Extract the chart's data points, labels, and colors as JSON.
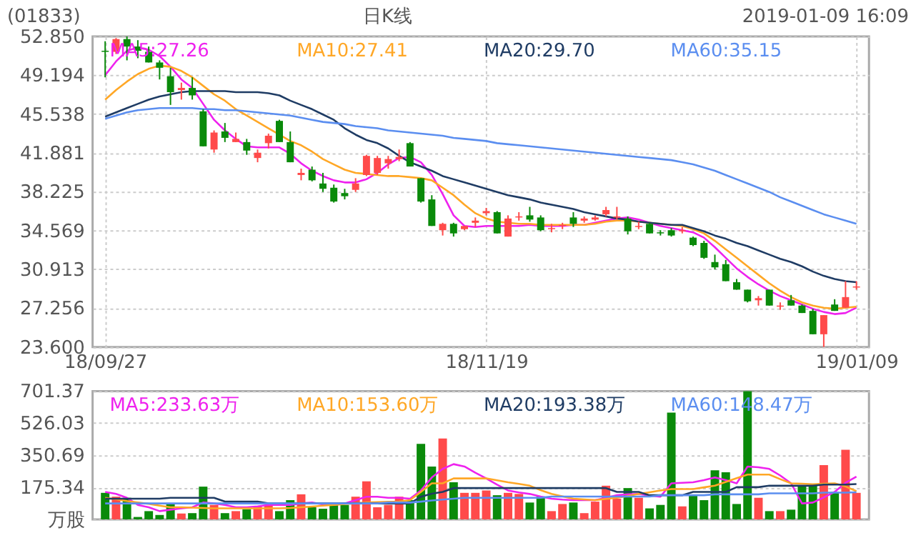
{
  "chart_data": [
    {
      "type": "candlestick",
      "title": "(01833)",
      "annotations": [
        "日K线",
        "2019-01-09 16:09"
      ],
      "categories": [
        "18/09/27",
        null,
        null,
        null,
        null,
        null,
        null,
        null,
        null,
        null,
        null,
        null,
        null,
        null,
        null,
        null,
        null,
        null,
        null,
        null,
        null,
        null,
        null,
        null,
        null,
        null,
        null,
        null,
        null,
        null,
        null,
        null,
        null,
        null,
        null,
        "18/11/19",
        null,
        null,
        null,
        null,
        null,
        null,
        null,
        null,
        null,
        null,
        null,
        null,
        null,
        null,
        null,
        null,
        null,
        null,
        null,
        null,
        null,
        null,
        null,
        null,
        null,
        null,
        null,
        null,
        null,
        null,
        null,
        null,
        null,
        "19/01/09"
      ],
      "ohlc": [
        [
          51.5,
          52.4,
          49.0,
          51.4
        ],
        [
          51.4,
          52.7,
          51.2,
          52.6
        ],
        [
          52.6,
          52.85,
          50.6,
          51.9
        ],
        [
          51.9,
          52.5,
          50.8,
          51.5
        ],
        [
          51.4,
          51.9,
          50.4,
          50.4
        ],
        [
          50.4,
          50.6,
          48.8,
          49.9
        ],
        [
          49.1,
          49.9,
          46.4,
          47.6
        ],
        [
          47.8,
          48.5,
          46.9,
          48.0
        ],
        [
          48.0,
          49.0,
          46.9,
          47.3
        ],
        [
          45.8,
          46.0,
          42.5,
          42.5
        ],
        [
          42.2,
          44.0,
          41.9,
          43.8
        ],
        [
          43.9,
          44.7,
          42.9,
          43.3
        ],
        [
          42.9,
          43.8,
          42.9,
          43.2
        ],
        [
          42.9,
          43.2,
          41.7,
          42.1
        ],
        [
          41.4,
          42.2,
          41.0,
          41.9
        ],
        [
          42.8,
          43.7,
          42.3,
          43.5
        ],
        [
          44.9,
          45.0,
          42.9,
          42.9
        ],
        [
          42.9,
          43.9,
          41.0,
          41.0
        ],
        [
          39.8,
          40.4,
          39.3,
          40.0
        ],
        [
          40.3,
          40.6,
          39.2,
          39.3
        ],
        [
          39.0,
          40.0,
          38.2,
          38.5
        ],
        [
          38.6,
          38.9,
          37.2,
          37.3
        ],
        [
          38.1,
          38.5,
          37.5,
          37.8
        ],
        [
          38.4,
          39.5,
          38.2,
          39.0
        ],
        [
          39.8,
          41.7,
          39.7,
          41.6
        ],
        [
          40.0,
          41.6,
          39.8,
          41.4
        ],
        [
          40.9,
          41.6,
          40.4,
          41.3
        ],
        [
          41.3,
          42.2,
          41.1,
          41.5
        ],
        [
          42.8,
          42.9,
          40.6,
          40.6
        ],
        [
          39.5,
          39.5,
          37.2,
          37.3
        ],
        [
          37.5,
          37.9,
          35.0,
          35.0
        ],
        [
          34.6,
          35.3,
          34.1,
          35.2
        ],
        [
          35.2,
          35.3,
          34.0,
          34.3
        ],
        [
          34.7,
          35.0,
          34.6,
          35.0
        ],
        [
          35.3,
          35.8,
          34.9,
          35.5
        ],
        [
          36.2,
          36.7,
          36.0,
          36.4
        ],
        [
          36.3,
          36.4,
          34.3,
          34.3
        ],
        [
          34.0,
          36.0,
          34.0,
          35.7
        ],
        [
          35.8,
          36.3,
          35.5,
          35.9
        ],
        [
          36.0,
          36.8,
          35.4,
          35.6
        ],
        [
          35.8,
          36.0,
          34.5,
          34.6
        ],
        [
          34.7,
          35.2,
          34.4,
          34.8
        ],
        [
          35.0,
          35.3,
          34.7,
          35.1
        ],
        [
          35.8,
          36.3,
          34.9,
          35.2
        ],
        [
          35.5,
          35.9,
          35.3,
          35.7
        ],
        [
          35.6,
          36.0,
          35.5,
          35.8
        ],
        [
          36.1,
          36.8,
          35.9,
          36.5
        ],
        [
          35.8,
          36.8,
          35.6,
          35.9
        ],
        [
          35.7,
          35.9,
          34.2,
          34.5
        ],
        [
          34.9,
          35.4,
          34.7,
          35.0
        ],
        [
          35.2,
          35.3,
          34.3,
          34.3
        ],
        [
          34.4,
          34.6,
          34.1,
          34.3
        ],
        [
          34.6,
          34.8,
          34.0,
          34.1
        ],
        [
          34.5,
          34.9,
          34.3,
          34.6
        ],
        [
          33.9,
          34.0,
          33.1,
          33.2
        ],
        [
          33.4,
          33.6,
          31.9,
          32.0
        ],
        [
          31.6,
          32.3,
          30.9,
          31.1
        ],
        [
          31.4,
          31.8,
          29.8,
          29.8
        ],
        [
          29.7,
          30.0,
          29.0,
          29.0
        ],
        [
          29.0,
          29.0,
          27.8,
          27.9
        ],
        [
          28.0,
          28.4,
          27.5,
          28.2
        ],
        [
          29.0,
          29.0,
          27.5,
          27.5
        ],
        [
          27.4,
          27.8,
          27.1,
          27.5
        ],
        [
          28.0,
          28.5,
          27.5,
          27.5
        ],
        [
          27.5,
          27.6,
          26.8,
          26.8
        ],
        [
          27.0,
          27.2,
          24.8,
          24.8
        ],
        [
          24.8,
          26.6,
          23.6,
          26.6
        ],
        [
          27.6,
          28.1,
          27.0,
          27.0
        ],
        [
          27.3,
          29.8,
          27.3,
          28.3
        ],
        [
          29.2,
          29.8,
          29.0,
          29.3
        ]
      ],
      "series": [
        {
          "type": "line",
          "name": "MA5:27.26",
          "color": "#ee22ee",
          "values": [
            49.2,
            50.5,
            51.5,
            51.8,
            51.6,
            51.0,
            50.0,
            48.8,
            48.0,
            46.5,
            45.0,
            44.0,
            43.2,
            42.5,
            42.4,
            42.4,
            42.4,
            41.8,
            40.9,
            40.2,
            39.7,
            39.3,
            39.1,
            39.1,
            39.4,
            40.0,
            40.8,
            41.4,
            41.5,
            41.0,
            39.8,
            38.0,
            36.0,
            35.0,
            34.9,
            35.0,
            35.0,
            35.0,
            35.0,
            35.1,
            35.0,
            35.0,
            35.0,
            35.1,
            35.1,
            35.3,
            35.5,
            35.7,
            35.8,
            35.6,
            35.3,
            35.0,
            34.8,
            34.6,
            34.4,
            33.9,
            33.0,
            32.0,
            31.0,
            30.2,
            29.5,
            28.9,
            28.4,
            28.0,
            27.6,
            27.2,
            26.9,
            26.7,
            26.8,
            27.3
          ]
        },
        {
          "type": "line",
          "name": "MA10:27.41",
          "color": "#ffa726",
          "values": [
            46.9,
            47.8,
            48.6,
            49.3,
            49.8,
            50.1,
            50.0,
            49.6,
            49.0,
            48.2,
            47.4,
            46.8,
            46.0,
            45.4,
            44.8,
            44.2,
            43.6,
            43.0,
            42.6,
            42.0,
            41.3,
            40.8,
            40.3,
            40.0,
            39.9,
            39.8,
            39.7,
            39.7,
            39.6,
            39.5,
            39.3,
            38.6,
            37.9,
            37.0,
            36.2,
            35.7,
            35.4,
            35.3,
            35.2,
            35.2,
            35.1,
            35.1,
            35.1,
            35.1,
            35.1,
            35.2,
            35.4,
            35.5,
            35.5,
            35.4,
            35.3,
            35.2,
            35.1,
            35.0,
            34.7,
            34.3,
            33.6,
            32.8,
            32.0,
            31.2,
            30.4,
            29.6,
            28.9,
            28.3,
            27.8,
            27.5,
            27.3,
            27.2,
            27.3,
            27.4
          ]
        },
        {
          "type": "line",
          "name": "MA20:29.70",
          "color": "#1f3c64",
          "values": [
            45.3,
            45.7,
            46.1,
            46.5,
            46.9,
            47.2,
            47.4,
            47.6,
            47.7,
            47.7,
            47.7,
            47.7,
            47.6,
            47.6,
            47.6,
            47.5,
            47.3,
            46.8,
            46.4,
            46.0,
            45.5,
            45.0,
            44.2,
            43.6,
            43.1,
            42.8,
            42.3,
            41.6,
            41.0,
            40.6,
            40.2,
            39.7,
            39.4,
            39.1,
            38.8,
            38.5,
            38.2,
            37.9,
            37.7,
            37.5,
            37.2,
            37.0,
            36.8,
            36.6,
            36.3,
            36.1,
            35.9,
            35.7,
            35.6,
            35.4,
            35.3,
            35.2,
            35.1,
            35.1,
            34.8,
            34.5,
            34.1,
            33.8,
            33.4,
            33.1,
            32.7,
            32.3,
            31.9,
            31.6,
            31.2,
            30.7,
            30.3,
            30.0,
            29.8,
            29.7
          ]
        },
        {
          "type": "line",
          "name": "MA60:35.15",
          "color": "#5b8ef0",
          "values": [
            45.1,
            45.4,
            45.7,
            45.9,
            46.0,
            46.1,
            46.1,
            46.1,
            46.1,
            46.0,
            46.0,
            45.9,
            45.9,
            45.8,
            45.7,
            45.6,
            45.5,
            45.4,
            45.2,
            45.0,
            44.8,
            44.7,
            44.6,
            44.4,
            44.3,
            44.2,
            44.0,
            43.9,
            43.8,
            43.7,
            43.6,
            43.5,
            43.3,
            43.2,
            43.1,
            43.0,
            42.8,
            42.7,
            42.6,
            42.5,
            42.4,
            42.3,
            42.2,
            42.1,
            42.0,
            41.9,
            41.8,
            41.7,
            41.6,
            41.5,
            41.4,
            41.3,
            41.2,
            41.0,
            40.8,
            40.5,
            40.2,
            39.8,
            39.4,
            39.0,
            38.6,
            38.2,
            37.7,
            37.3,
            36.9,
            36.5,
            36.1,
            35.8,
            35.5,
            35.2
          ]
        }
      ],
      "ylim": [
        23.6,
        52.85
      ],
      "yticks": [
        {
          "value": 23.6,
          "label": "23.600"
        },
        27.256,
        30.913,
        34.569,
        38.225,
        41.881,
        45.538,
        49.194,
        {
          "value": 52.85,
          "label": "52.850"
        }
      ],
      "grid": true,
      "legend": "top"
    },
    {
      "type": "bar",
      "categories": [
        null,
        null,
        null,
        null,
        null,
        null,
        null,
        null,
        null,
        null,
        null,
        null,
        null,
        null,
        null,
        null,
        null,
        null,
        null,
        null,
        null,
        null,
        null,
        null,
        null,
        null,
        null,
        null,
        null,
        null,
        null,
        null,
        null,
        null,
        null,
        null,
        null,
        null,
        null,
        null,
        null,
        null,
        null,
        null,
        null,
        null,
        null,
        null,
        null,
        null,
        null,
        null,
        null,
        null,
        null,
        null,
        null,
        null,
        null,
        null,
        null,
        null,
        null,
        null,
        null,
        null,
        null,
        null,
        null,
        null
      ],
      "values": [
        145,
        124,
        118,
        13,
        45,
        24,
        87,
        32,
        34,
        179,
        79,
        34,
        45,
        55,
        71,
        79,
        45,
        105,
        137,
        66,
        58,
        79,
        79,
        124,
        208,
        66,
        79,
        124,
        105,
        413,
        289,
        442,
        203,
        145,
        145,
        158,
        132,
        145,
        139,
        92,
        124,
        45,
        84,
        92,
        34,
        97,
        184,
        113,
        171,
        118,
        60,
        79,
        584,
        71,
        132,
        105,
        268,
        258,
        84,
        701,
        118,
        45,
        45,
        53,
        184,
        184,
        297,
        150,
        381,
        145
      ],
      "colors": [
        "#0a8a0a",
        "#ff4a4a",
        "#0a8a0a",
        "#0a8a0a",
        "#0a8a0a",
        "#0a8a0a",
        "#0a8a0a",
        "#ff4a4a",
        "#0a8a0a",
        "#0a8a0a",
        "#ff4a4a",
        "#0a8a0a",
        "#ff4a4a",
        "#0a8a0a",
        "#ff4a4a",
        "#ff4a4a",
        "#0a8a0a",
        "#0a8a0a",
        "#ff4a4a",
        "#0a8a0a",
        "#0a8a0a",
        "#0a8a0a",
        "#0a8a0a",
        "#ff4a4a",
        "#ff4a4a",
        "#ff4a4a",
        "#ff4a4a",
        "#ff4a4a",
        "#0a8a0a",
        "#0a8a0a",
        "#0a8a0a",
        "#ff4a4a",
        "#0a8a0a",
        "#ff4a4a",
        "#ff4a4a",
        "#ff4a4a",
        "#0a8a0a",
        "#ff4a4a",
        "#ff4a4a",
        "#0a8a0a",
        "#0a8a0a",
        "#ff4a4a",
        "#ff4a4a",
        "#0a8a0a",
        "#ff4a4a",
        "#ff4a4a",
        "#ff4a4a",
        "#ff4a4a",
        "#0a8a0a",
        "#ff4a4a",
        "#0a8a0a",
        "#0a8a0a",
        "#0a8a0a",
        "#ff4a4a",
        "#0a8a0a",
        "#0a8a0a",
        "#0a8a0a",
        "#0a8a0a",
        "#0a8a0a",
        "#0a8a0a",
        "#ff4a4a",
        "#0a8a0a",
        "#ff4a4a",
        "#0a8a0a",
        "#0a8a0a",
        "#0a8a0a",
        "#ff4a4a",
        "#0a8a0a",
        "#ff4a4a",
        "#ff4a4a"
      ],
      "series": [
        {
          "type": "line",
          "name": "MA5:233.63万",
          "color": "#ee22ee",
          "values": [
            150,
            139,
            118,
            79,
            66,
            45,
            53,
            60,
            66,
            92,
            87,
            79,
            66,
            66,
            71,
            79,
            79,
            79,
            87,
            92,
            82,
            79,
            87,
            105,
            124,
            124,
            118,
            118,
            113,
            158,
            229,
            276,
            302,
            289,
            255,
            224,
            190,
            158,
            147,
            139,
            125,
            113,
            108,
            105,
            105,
            105,
            118,
            132,
            137,
            139,
            130,
            124,
            197,
            200,
            203,
            215,
            229,
            215,
            197,
            289,
            285,
            276,
            240,
            197,
            87,
            92,
            120,
            150,
            200,
            234
          ]
        },
        {
          "type": "line",
          "name": "MA10:153.60万",
          "color": "#ffa726",
          "values": [
            118,
            110,
            100,
            92,
            85,
            75,
            66,
            66,
            64,
            62,
            60,
            60,
            60,
            60,
            60,
            60,
            60,
            62,
            66,
            70,
            75,
            79,
            84,
            88,
            92,
            94,
            96,
            97,
            105,
            150,
            197,
            197,
            224,
            224,
            224,
            224,
            214,
            203,
            194,
            184,
            160,
            139,
            126,
            113,
            109,
            105,
            112,
            118,
            128,
            139,
            148,
            158,
            166,
            166,
            166,
            175,
            184,
            205,
            225,
            245,
            245,
            245,
            220,
            197,
            195,
            192,
            195,
            197,
            180,
            154
          ]
        },
        {
          "type": "line",
          "name": "MA20:193.38万",
          "color": "#1f3c64",
          "values": [
            113,
            113,
            113,
            113,
            113,
            113,
            118,
            118,
            118,
            118,
            118,
            97,
            97,
            97,
            97,
            87,
            87,
            87,
            87,
            87,
            87,
            87,
            87,
            87,
            87,
            87,
            87,
            87,
            87,
            124,
            140,
            150,
            171,
            171,
            171,
            171,
            171,
            171,
            171,
            171,
            171,
            171,
            171,
            171,
            171,
            171,
            171,
            150,
            150,
            150,
            132,
            132,
            132,
            132,
            150,
            150,
            150,
            150,
            176,
            176,
            176,
            184,
            184,
            184,
            184,
            184,
            190,
            190,
            190,
            193
          ]
        },
        {
          "type": "line",
          "name": "MA60:148.47万",
          "color": "#5b8ef0",
          "values": [
            87,
            87,
            87,
            87,
            87,
            87,
            87,
            87,
            87,
            87,
            87,
            87,
            87,
            87,
            87,
            87,
            87,
            87,
            87,
            87,
            87,
            87,
            87,
            87,
            87,
            87,
            92,
            92,
            92,
            97,
            103,
            108,
            113,
            118,
            118,
            118,
            118,
            118,
            118,
            118,
            118,
            125,
            125,
            125,
            125,
            125,
            125,
            125,
            125,
            125,
            125,
            132,
            132,
            132,
            132,
            132,
            137,
            137,
            137,
            137,
            137,
            142,
            142,
            142,
            142,
            142,
            146,
            146,
            146,
            148
          ]
        }
      ],
      "ylim": [
        0,
        701.37
      ],
      "yticks": [
        {
          "value": 0,
          "label": "万股"
        },
        175.34,
        350.69,
        526.03,
        701.37
      ],
      "tick_labels": "y",
      "grid": "y",
      "legend": "top"
    }
  ]
}
